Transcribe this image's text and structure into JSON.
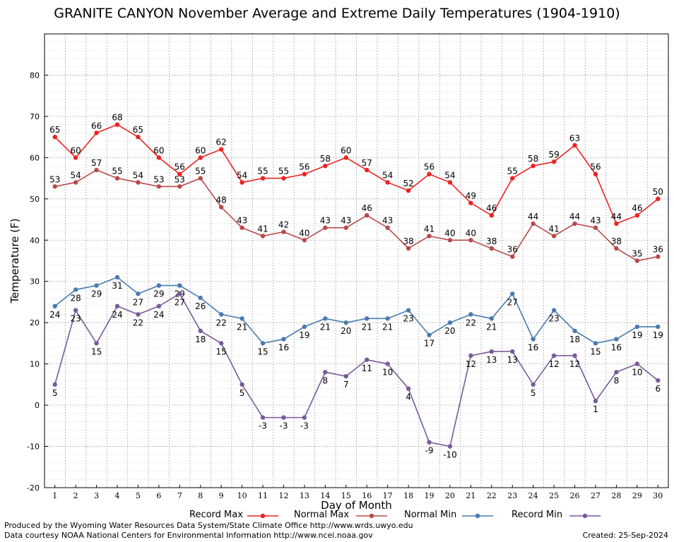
{
  "chart_data": {
    "type": "line",
    "title": "GRANITE CANYON November Average and Extreme Daily Temperatures (1904-1910)",
    "xlabel": "Day of Month",
    "ylabel": "Temperature (F)",
    "ylim": [
      -20,
      90
    ],
    "yticks": [
      -20,
      -10,
      0,
      10,
      20,
      30,
      40,
      50,
      60,
      70,
      80
    ],
    "x": [
      1,
      2,
      3,
      4,
      5,
      6,
      7,
      8,
      9,
      10,
      11,
      12,
      13,
      14,
      15,
      16,
      17,
      18,
      19,
      20,
      21,
      22,
      23,
      24,
      25,
      26,
      27,
      28,
      29,
      30
    ],
    "grid": true,
    "legend_position": "bottom",
    "series": [
      {
        "name": "Record Max",
        "color": "#ee2222",
        "values": [
          65,
          60,
          66,
          68,
          65,
          60,
          56,
          60,
          62,
          54,
          55,
          55,
          56,
          58,
          60,
          57,
          54,
          52,
          56,
          54,
          49,
          46,
          55,
          58,
          59,
          63,
          56,
          44,
          46,
          50
        ]
      },
      {
        "name": "Normal Max",
        "color": "#b84a4a",
        "values": [
          53,
          54,
          57,
          55,
          54,
          53,
          53,
          55,
          48,
          43,
          41,
          42,
          40,
          43,
          43,
          46,
          43,
          38,
          41,
          40,
          40,
          38,
          36,
          44,
          41,
          44,
          43,
          38,
          35,
          36
        ]
      },
      {
        "name": "Normal Min",
        "color": "#4a7ab0",
        "values": [
          24,
          28,
          29,
          31,
          27,
          29,
          29,
          26,
          22,
          21,
          15,
          16,
          19,
          21,
          20,
          21,
          21,
          23,
          17,
          20,
          22,
          21,
          27,
          16,
          23,
          18,
          15,
          16,
          19,
          19
        ]
      },
      {
        "name": "Record Min",
        "color": "#7a5a9a",
        "values": [
          5,
          23,
          15,
          24,
          22,
          24,
          27,
          18,
          15,
          5,
          -3,
          -3,
          -3,
          8,
          7,
          11,
          10,
          4,
          -9,
          -10,
          12,
          13,
          13,
          5,
          12,
          12,
          1,
          8,
          10,
          6
        ]
      }
    ]
  },
  "credits": {
    "produced_by": "Produced by the Wyoming Water Resources Data System/State Climate Office http://www.wrds.uwyo.edu",
    "courtesy": "Data courtesy NOAA National Centers for Environmental Information http://www.ncei.noaa.gov",
    "created": "Created:  25-Sep-2024"
  }
}
